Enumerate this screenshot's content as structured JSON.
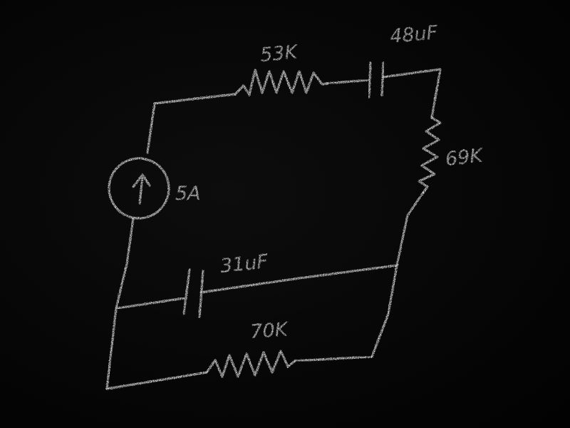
{
  "diagram": {
    "colors": {
      "background": "#050505",
      "chalk": "#e9e9e9"
    },
    "components": {
      "resistor_top": {
        "type": "resistor",
        "label": "53K"
      },
      "capacitor_top": {
        "type": "capacitor",
        "label": "48uF"
      },
      "resistor_right": {
        "type": "resistor",
        "label": "69K"
      },
      "current_source": {
        "type": "current-source",
        "label": "5A",
        "icon": "arrow-up-icon"
      },
      "capacitor_middle": {
        "type": "capacitor",
        "label": "31uF"
      },
      "resistor_bottom": {
        "type": "resistor",
        "label": "70K"
      }
    }
  }
}
